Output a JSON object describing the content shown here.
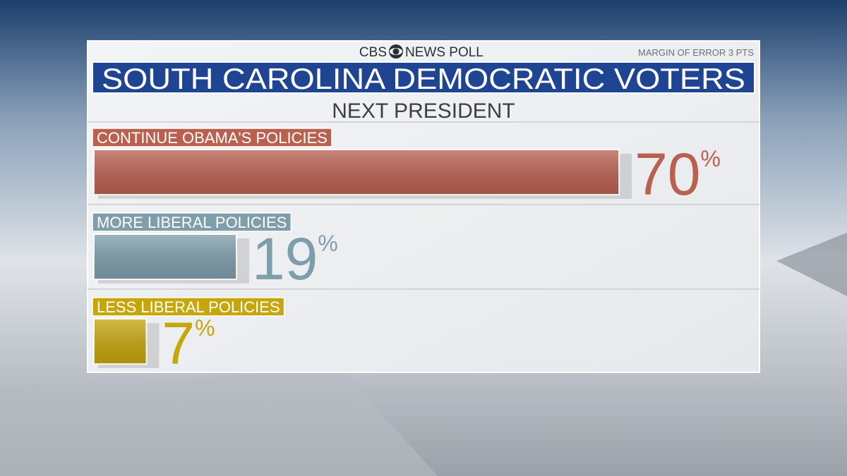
{
  "chart_data": {
    "type": "bar",
    "brand": "CBS",
    "brand_suffix": "NEWS POLL",
    "note": "MARGIN OF ERROR 3 PTS",
    "title": "SOUTH CAROLINA DEMOCRATIC VOTERS",
    "subtitle": "NEXT PRESIDENT",
    "categories": [
      "CONTINUE OBAMA'S POLICIES",
      "MORE LIBERAL POLICIES",
      "LESS LIBERAL POLICIES"
    ],
    "values": [
      70,
      19,
      7
    ],
    "value_labels": [
      "70%",
      "19%",
      "7%"
    ],
    "colors": [
      "#b9604f",
      "#7e9eab",
      "#c6a60a"
    ]
  }
}
